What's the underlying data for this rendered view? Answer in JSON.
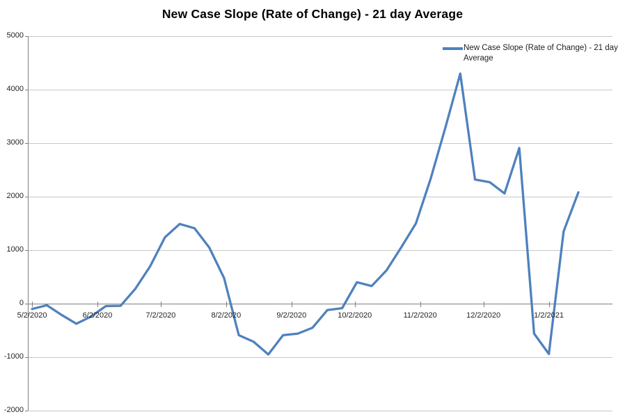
{
  "chart_data": {
    "type": "line",
    "title": "New Case Slope (Rate of Change) - 21 day Average",
    "xlabel": "",
    "ylabel": "",
    "ylim": [
      -2000,
      5000
    ],
    "grid": true,
    "background": "#FFFFFF",
    "gridline_color": "#C8C8C8",
    "axis_color": "#7F7F7F",
    "legend_position": "top-right-inside",
    "y_tick_labels": [
      "5000",
      "4000",
      "3000",
      "2000",
      "1000",
      "0",
      "-1000",
      "-2000"
    ],
    "x_tick_labels": [
      "5/2/2020",
      "6/2/2020",
      "7/2/2020",
      "8/2/2020",
      "9/2/2020",
      "10/2/2020",
      "11/2/2020",
      "12/2/2020",
      "1/2/2021"
    ],
    "series": [
      {
        "name": "New Case Slope (Rate of Change) - 21 day Average",
        "color": "#4F81BD",
        "x": [
          "5/2/2020",
          "5/9/2020",
          "5/16/2020",
          "5/23/2020",
          "5/30/2020",
          "6/6/2020",
          "6/13/2020",
          "6/20/2020",
          "6/27/2020",
          "7/4/2020",
          "7/11/2020",
          "7/18/2020",
          "7/25/2020",
          "8/1/2020",
          "8/8/2020",
          "8/15/2020",
          "8/22/2020",
          "8/29/2020",
          "9/5/2020",
          "9/12/2020",
          "9/19/2020",
          "9/26/2020",
          "10/3/2020",
          "10/10/2020",
          "10/17/2020",
          "10/24/2020",
          "10/31/2020",
          "11/7/2020",
          "11/14/2020",
          "11/21/2020",
          "11/28/2020",
          "12/5/2020",
          "12/12/2020",
          "12/19/2020",
          "12/26/2020",
          "1/2/2021",
          "1/9/2021",
          "1/16/2021"
        ],
        "values": [
          -100,
          -30,
          -210,
          -375,
          -240,
          -45,
          -40,
          280,
          700,
          1240,
          1490,
          1410,
          1050,
          480,
          -590,
          -710,
          -950,
          -590,
          -560,
          -450,
          -120,
          -85,
          400,
          330,
          620,
          1050,
          1500,
          2340,
          3300,
          4300,
          2320,
          2270,
          2060,
          2910,
          -560,
          -940,
          1350,
          2080
        ]
      }
    ]
  },
  "legend": {
    "label": "New Case Slope (Rate of Change) - 21 day Average"
  }
}
